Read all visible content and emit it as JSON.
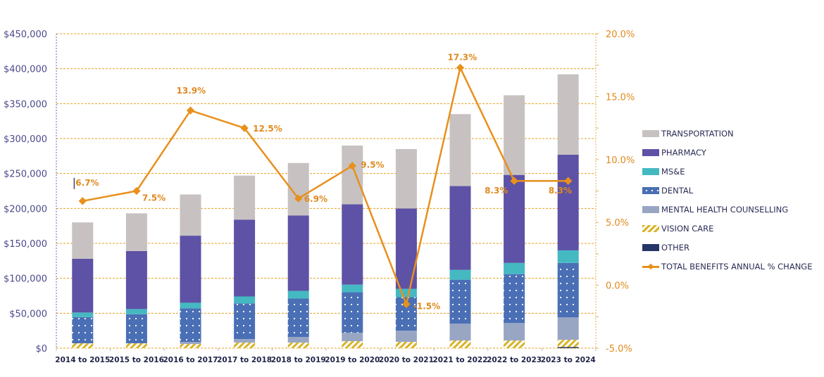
{
  "chart_data": {
    "type": "bar",
    "stacked": true,
    "title": "",
    "xlabel": "",
    "ylabel": "",
    "ylim": [
      0,
      450000
    ],
    "y2lim": [
      -5.0,
      20.0
    ],
    "grid": true,
    "legend_position": "right",
    "categories": [
      "2014 to 2015",
      "2015 to 2016",
      "2016 to 2017",
      "2017 to 2018",
      "2018 to 2019",
      "2019 to 2020",
      "2020 to 2021",
      "2021 to 2022",
      "2022 to 2023",
      "2023 to 2024"
    ],
    "left_ticks": [
      "$0",
      "$50,000",
      "$100,000",
      "$150,000",
      "$200,000",
      "$250,000",
      "$300,000",
      "$350,000",
      "$400,000",
      "$450,000"
    ],
    "left_tick_values": [
      0,
      50000,
      100000,
      150000,
      200000,
      250000,
      300000,
      350000,
      400000,
      450000
    ],
    "right_ticks": [
      "-5.0%",
      "0.0%",
      "5.0%",
      "10.0%",
      "15.0%",
      "20.0%"
    ],
    "right_tick_values": [
      -5,
      0,
      5,
      10,
      15,
      20
    ],
    "series": [
      {
        "name": "OTHER",
        "key": "other",
        "color": "#253566",
        "values": [
          0,
          0,
          0,
          0,
          0,
          0,
          0,
          0,
          0,
          1500
        ]
      },
      {
        "name": "VISION CARE",
        "key": "vision",
        "color": "#d9b326",
        "values": [
          7000,
          7000,
          6000,
          8000,
          8000,
          10000,
          9000,
          11000,
          11000,
          10500
        ]
      },
      {
        "name": "MENTAL HEALTH  COUNSELLING",
        "key": "mental",
        "color": "#98a6c4",
        "values": [
          0,
          0,
          3000,
          5000,
          8000,
          12000,
          16000,
          24000,
          25000,
          32000
        ]
      },
      {
        "name": "DENTAL",
        "key": "dental",
        "color": "#4a6fb5",
        "values": [
          37500,
          41600,
          48000,
          51000,
          55000,
          58000,
          48000,
          63000,
          70000,
          78000
        ]
      },
      {
        "name": "MS&E",
        "key": "mse",
        "color": "#45b9c2",
        "values": [
          6500,
          7400,
          8000,
          10000,
          11000,
          11000,
          12000,
          14000,
          16000,
          18000
        ]
      },
      {
        "name": "PHARMACY",
        "key": "pharmacy",
        "color": "#5d52a6",
        "values": [
          77000,
          83000,
          96000,
          110000,
          108000,
          115000,
          115000,
          120000,
          126000,
          137000
        ]
      },
      {
        "name": "TRANSPORTATION",
        "key": "transport",
        "color": "#c7c2c1",
        "values": [
          52000,
          54000,
          59000,
          63000,
          75000,
          84000,
          85000,
          103000,
          114000,
          115000
        ]
      }
    ],
    "line": {
      "name": "TOTAL BENEFITS ANNUAL % CHANGE",
      "color": "#e8901c",
      "values": [
        6.7,
        7.5,
        13.9,
        12.5,
        6.9,
        9.5,
        -1.5,
        17.3,
        8.3,
        8.3
      ],
      "labels": [
        "6.7%",
        "7.5%",
        "13.9%",
        "12.5%",
        "6.9%",
        "9.5%",
        "-1.5%",
        "17.3%",
        "8.3%",
        "8.3%"
      ]
    },
    "legend": [
      {
        "label": "TRANSPORTATION",
        "key": "transport"
      },
      {
        "label": "PHARMACY",
        "key": "pharmacy"
      },
      {
        "label": "MS&E",
        "key": "mse"
      },
      {
        "label": "DENTAL",
        "key": "dental"
      },
      {
        "label": "MENTAL HEALTH  COUNSELLING",
        "key": "mental"
      },
      {
        "label": "VISION CARE",
        "key": "vision"
      },
      {
        "label": "OTHER",
        "key": "other"
      },
      {
        "label": "TOTAL BENEFITS ANNUAL % CHANGE",
        "key": "line"
      }
    ]
  }
}
